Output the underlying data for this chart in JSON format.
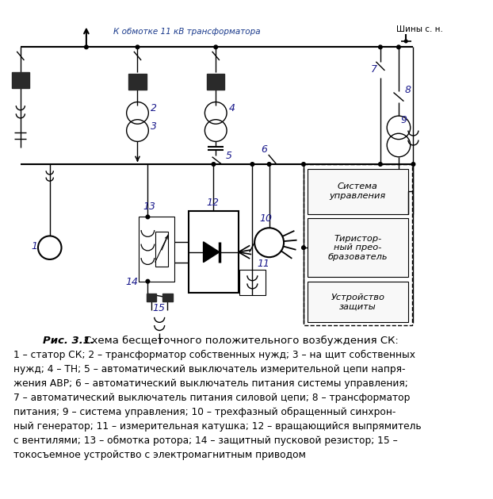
{
  "title": "Рис. 3.1.",
  "subtitle": " Схема бесщеточного положительного возбуждения СК:",
  "caption_lines": [
    "1 – статор СК; 2 – трансформатор собственных нужд; 3 – на щит собственных",
    "нужд; 4 – ТН; 5 – автоматический выключатель измерительной цепи напря-",
    "жения АВР; 6 – автоматический выключатель питания системы управления;",
    "7 – автоматический выключатель питания силовой цепи; 8 – трансформатор",
    "питания; 9 – система управления; 10 – трехфазный обращенный синхрон-",
    "ный генератор; 11 – измерительная катушка; 12 – вращающийся выпрямитель",
    "с вентилями; 13 – обмотка ротора; 14 – защитный пусковой резистор; 15 –",
    "токосъемное устройство с электромагнитным приводом"
  ],
  "top_label": "К обмотке 11 кВ трансформатора",
  "top_right_label": "Шины с. н.",
  "box1_label": "Система\nуправления",
  "box2_label": "Тиристор-\nный прео-\nбразователь",
  "box3_label": "Устройство\nзащиты",
  "bg_color": "#ffffff",
  "line_color": "#000000",
  "label_color": "#1a1a8c",
  "text_color": "#000000"
}
